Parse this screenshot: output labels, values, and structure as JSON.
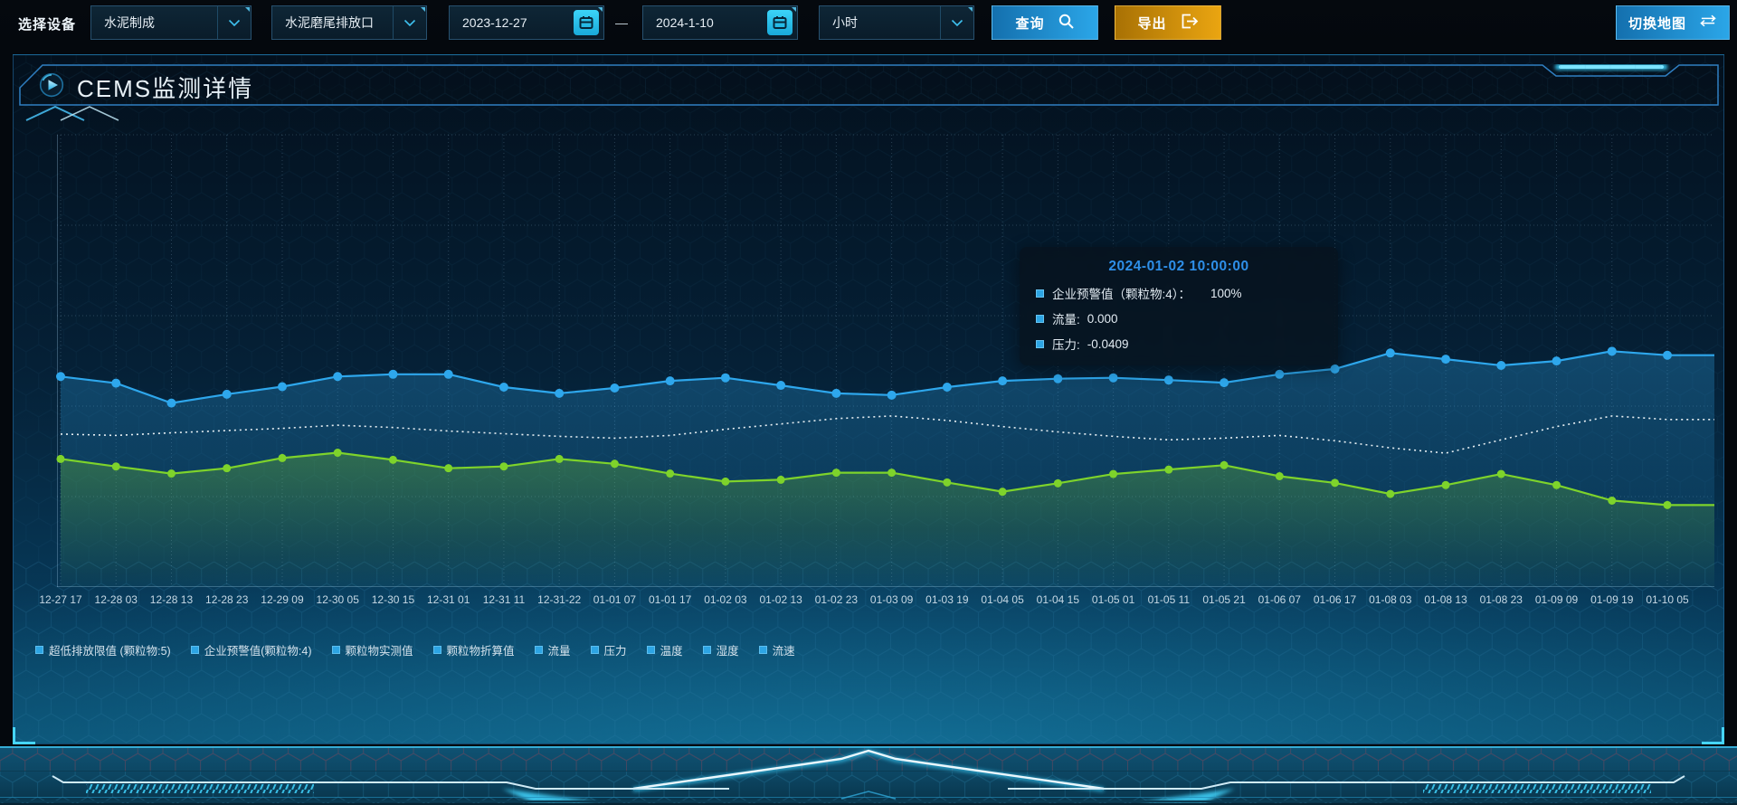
{
  "topbar": {
    "device_label": "选择设备",
    "device_value": "水泥制成",
    "outlet_value": "水泥磨尾排放口",
    "date_start": "2023-12-27",
    "date_separator": "—",
    "date_end": "2024-1-10",
    "interval_value": "小时",
    "query_label": "查询",
    "export_label": "导出",
    "switch_map_label": "切换地图"
  },
  "panel": {
    "title": "CEMS监测详情"
  },
  "tooltip": {
    "title": "2024-01-02 10:00:00",
    "rows": [
      {
        "label": "企业预警值（颗粒物:4）：",
        "value": "100%"
      },
      {
        "label": "流量:",
        "value": "0.000"
      },
      {
        "label": "压力:",
        "value": "-0.0409"
      }
    ]
  },
  "icons": {
    "query": "search-icon",
    "export": "export-icon",
    "switch_map": "swap-horizontal-icon",
    "date": "calendar-icon",
    "select": "chevron-down-icon",
    "panel_title": "play-icon"
  },
  "colors": {
    "accent_blue": "#2da5e4",
    "accent_cyan": "#38cdf8",
    "line_blue": "#2ea7ec",
    "line_green": "#7ed32b",
    "line_white_dotted": "#e8f0f4",
    "button_orange": "#eaa511",
    "tooltip_title_blue": "#2e8fe8",
    "panel_glow_teal": "#1a8cb9"
  },
  "chart_data": {
    "type": "line",
    "title": "CEMS监测详情",
    "x_labels": [
      "12-27 17",
      "12-28 03",
      "12-28 13",
      "12-28 23",
      "12-29 09",
      "12-30 05",
      "12-30 15",
      "12-31 01",
      "12-31 11",
      "12-31-22",
      "01-01 07",
      "01-01 17",
      "01-02 03",
      "01-02 13",
      "01-02 23",
      "01-03 09",
      "01-03 19",
      "01-04 05",
      "01-04 15",
      "01-05 01",
      "01-05 11",
      "01-05 21",
      "01-06 07",
      "01-06 17",
      "01-08 03",
      "01-08 13",
      "01-08 23",
      "01-09 09",
      "01-09 19",
      "01-10 05"
    ],
    "y_axis": {
      "visible": false,
      "min": 0,
      "max": 100,
      "note": "no y-axis labels shown; series values estimated as % of plot height"
    },
    "grid": {
      "style": "dotted",
      "h_lines": 6,
      "v_lines": 30
    },
    "legend_position": "bottom-left",
    "legend": [
      "超低排放限值 (颗粒物:5)",
      "企业预警值(颗粒物:4)",
      "颗粒物实测值",
      "颗粒物折算值",
      "流量",
      "压力",
      "温度",
      "湿度",
      "流速"
    ],
    "series": [
      {
        "name": "压力",
        "color": "#2ea7ec",
        "line_style": "solid",
        "markers": true,
        "marker_r": 5,
        "area": true,
        "values": [
          47.5,
          46.0,
          41.5,
          43.5,
          45.2,
          47.5,
          48.0,
          48.0,
          45.1,
          43.7,
          44.9,
          46.5,
          47.2,
          45.5,
          43.7,
          43.3,
          45.1,
          46.5,
          47.0,
          47.2,
          46.7,
          46.1,
          48.0,
          49.2,
          52.8,
          51.4,
          50.0,
          51.0,
          53.2,
          52.3
        ]
      },
      {
        "name": "企业预警值(颗粒物:4)",
        "color": "#e8f0f4",
        "line_style": "dotted",
        "markers": false,
        "marker_r": 0,
        "area": false,
        "values": [
          34.5,
          34.2,
          34.8,
          35.3,
          35.8,
          36.5,
          36.0,
          35.2,
          34.6,
          34.0,
          33.6,
          34.2,
          35.6,
          36.8,
          38.0,
          38.6,
          37.6,
          36.2,
          35.0,
          34.0,
          33.2,
          33.6,
          34.2,
          33.0,
          31.4,
          30.2,
          33.2,
          36.2,
          38.6,
          37.8
        ]
      },
      {
        "name": "流量",
        "color": "#7ed32b",
        "line_style": "solid",
        "markers": true,
        "marker_r": 4.5,
        "area": true,
        "values": [
          28.9,
          27.2,
          25.6,
          26.8,
          29.1,
          30.3,
          28.7,
          26.8,
          27.2,
          28.9,
          27.8,
          25.6,
          23.8,
          24.2,
          25.8,
          25.8,
          23.6,
          21.5,
          23.4,
          25.5,
          26.5,
          27.5,
          25.0,
          23.5,
          21.0,
          23.0,
          25.5,
          23.0,
          19.5,
          18.5
        ]
      }
    ],
    "tooltip_shown_at": "2024-01-02 10:00:00"
  }
}
